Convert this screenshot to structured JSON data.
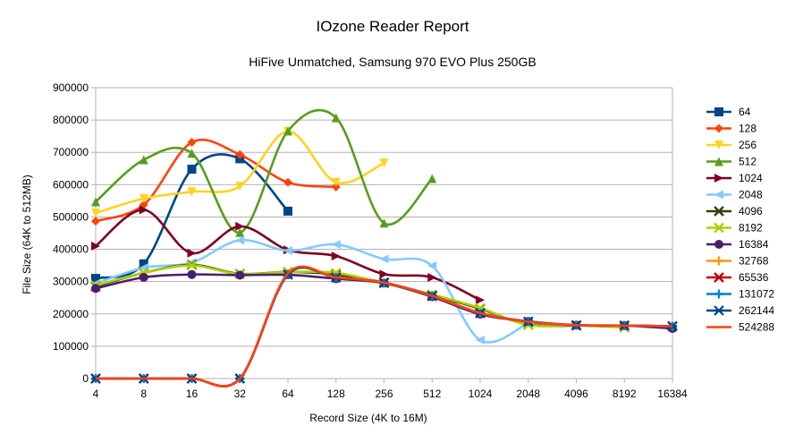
{
  "chart_data": {
    "type": "line",
    "title": "IOzone Reader Report",
    "subtitle": "HiFive Unmatched, Samsung 970 EVO Plus 250GB",
    "xlabel": "Record Size (4K to 16M)",
    "ylabel": "File Size (64K to 512MB)",
    "categories": [
      "4",
      "8",
      "16",
      "32",
      "64",
      "128",
      "256",
      "512",
      "1024",
      "2048",
      "4096",
      "8192",
      "16384"
    ],
    "ylim": [
      0,
      900000
    ],
    "yticks": [
      "0",
      "100000",
      "200000",
      "300000",
      "400000",
      "500000",
      "600000",
      "700000",
      "800000",
      "900000"
    ],
    "grid": "horizontal",
    "legend": "right",
    "smooth": true,
    "series": [
      {
        "name": "64",
        "color": "#004586",
        "marker": "square",
        "values": [
          310000,
          355000,
          648000,
          680000,
          518000,
          null,
          null,
          null,
          null,
          null,
          null,
          null,
          null
        ]
      },
      {
        "name": "128",
        "color": "#ff420e",
        "marker": "diamond",
        "values": [
          487000,
          538000,
          731000,
          693000,
          607000,
          593000,
          null,
          null,
          null,
          null,
          null,
          null,
          null
        ]
      },
      {
        "name": "256",
        "color": "#ffd320",
        "marker": "triangle-down",
        "values": [
          512000,
          557000,
          578000,
          595000,
          765000,
          607000,
          667000,
          null,
          null,
          null,
          null,
          null,
          null
        ]
      },
      {
        "name": "512",
        "color": "#579d1c",
        "marker": "triangle-up",
        "values": [
          547000,
          677000,
          697000,
          452000,
          766000,
          807000,
          481000,
          619000,
          null,
          null,
          null,
          null,
          null
        ]
      },
      {
        "name": "1024",
        "color": "#7e0021",
        "marker": "triangle-right",
        "values": [
          410000,
          522000,
          388000,
          471000,
          398000,
          379000,
          323000,
          313000,
          243000,
          null,
          null,
          null,
          null
        ]
      },
      {
        "name": "2048",
        "color": "#83caff",
        "marker": "triangle-left",
        "values": [
          294000,
          343000,
          359000,
          428000,
          396000,
          415000,
          370000,
          349000,
          119000,
          172000,
          null,
          null,
          null
        ]
      },
      {
        "name": "4096",
        "color": "#314004",
        "marker": "x",
        "values": [
          285000,
          327000,
          352000,
          324000,
          330000,
          322000,
          297000,
          259000,
          216000,
          167000,
          164000,
          null,
          null
        ]
      },
      {
        "name": "8192",
        "color": "#aecf00",
        "marker": "x",
        "values": [
          288000,
          327000,
          350000,
          323000,
          330000,
          327000,
          295000,
          260000,
          218000,
          166000,
          165000,
          158000,
          null
        ]
      },
      {
        "name": "16384",
        "color": "#4b1f6f",
        "marker": "circle",
        "values": [
          279000,
          313000,
          322000,
          320000,
          321000,
          309000,
          295000,
          253000,
          199000,
          177000,
          165000,
          164000,
          155000
        ]
      },
      {
        "name": "32768",
        "color": "#ff950e",
        "marker": "plus",
        "values": [
          0,
          0,
          0,
          0,
          324000,
          314000,
          295000,
          256000,
          203000,
          176000,
          166000,
          164000,
          162000
        ]
      },
      {
        "name": "65536",
        "color": "#c5000b",
        "marker": "x",
        "values": [
          0,
          0,
          0,
          0,
          322000,
          313000,
          297000,
          255000,
          202000,
          176000,
          165000,
          164000,
          162000
        ]
      },
      {
        "name": "131072",
        "color": "#0084d1",
        "marker": "plus",
        "values": [
          0,
          0,
          0,
          0,
          322000,
          313000,
          296000,
          257000,
          202000,
          177000,
          165000,
          164000,
          162000
        ]
      },
      {
        "name": "262144",
        "color": "#004586",
        "marker": "star",
        "values": [
          0,
          0,
          0,
          0,
          322000,
          313000,
          296000,
          256000,
          203000,
          176000,
          165000,
          164000,
          162000
        ]
      },
      {
        "name": "524288",
        "color": "#ff420e",
        "marker": "none",
        "values": [
          0,
          0,
          0,
          0,
          325000,
          313000,
          297000,
          256000,
          203000,
          176000,
          165000,
          164000,
          162000
        ]
      }
    ]
  }
}
